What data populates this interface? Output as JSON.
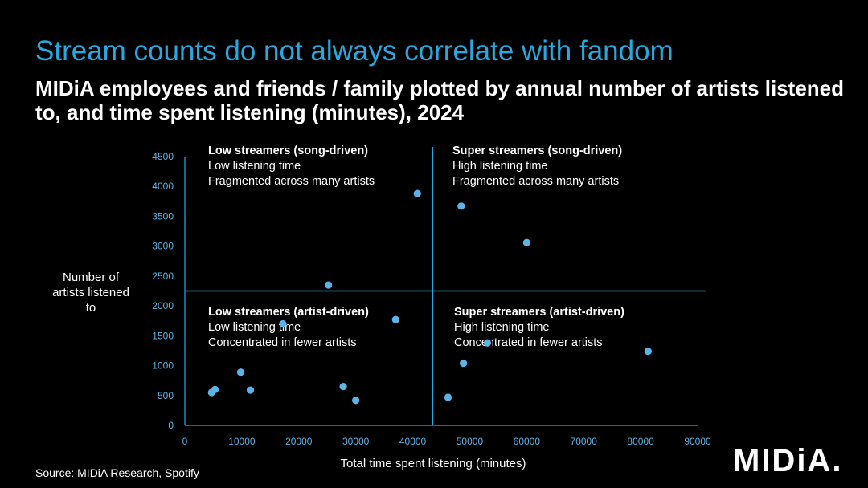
{
  "header": {
    "title": "Stream counts do not always correlate with fandom",
    "subtitle": "MIDiA employees and friends / family plotted by annual number of artists listened to, and time spent listening (minutes), 2024"
  },
  "footer": {
    "source": "Source: MIDiA Research, Spotify",
    "logo": "MIDiA."
  },
  "colors": {
    "accent": "#29a8e0",
    "tick_text": "#5ab4e8",
    "background": "#000000",
    "text": "#ffffff"
  },
  "chart_data": {
    "type": "scatter",
    "xlabel": "Total time spent listening (minutes)",
    "ylabel": "Number of artists listened to",
    "xlim": [
      0,
      90000
    ],
    "ylim": [
      0,
      4500
    ],
    "xticks": [
      0,
      10000,
      20000,
      30000,
      40000,
      50000,
      60000,
      70000,
      80000,
      90000
    ],
    "yticks": [
      0,
      500,
      1000,
      1500,
      2000,
      2500,
      3000,
      3500,
      4000,
      4500
    ],
    "grid": false,
    "divider_x": 43500,
    "divider_y": 2250,
    "quadrants": [
      {
        "id": "top-left",
        "title": "Low streamers (song-driven)",
        "lines": [
          "Low listening time",
          "Fragmented across many artists"
        ]
      },
      {
        "id": "top-right",
        "title": "Super streamers (song-driven)",
        "lines": [
          "High listening time",
          "Fragmented across many artists"
        ]
      },
      {
        "id": "bottom-left",
        "title": "Low streamers (artist-driven)",
        "lines": [
          "Low listening time",
          "Concentrated in fewer artists"
        ]
      },
      {
        "id": "bottom-right",
        "title": "Super streamers (artist-driven)",
        "lines": [
          "High listening time",
          "Concentrated in fewer artists"
        ]
      }
    ],
    "points": [
      {
        "x": 4700,
        "y": 550
      },
      {
        "x": 5300,
        "y": 600
      },
      {
        "x": 9800,
        "y": 890
      },
      {
        "x": 11500,
        "y": 590
      },
      {
        "x": 17200,
        "y": 1700
      },
      {
        "x": 25200,
        "y": 2350
      },
      {
        "x": 27800,
        "y": 650
      },
      {
        "x": 30000,
        "y": 420
      },
      {
        "x": 37000,
        "y": 1770
      },
      {
        "x": 40800,
        "y": 3880
      },
      {
        "x": 46200,
        "y": 470
      },
      {
        "x": 48500,
        "y": 3670
      },
      {
        "x": 48900,
        "y": 1040
      },
      {
        "x": 53100,
        "y": 1380
      },
      {
        "x": 60000,
        "y": 3060
      },
      {
        "x": 81300,
        "y": 1240
      }
    ]
  }
}
